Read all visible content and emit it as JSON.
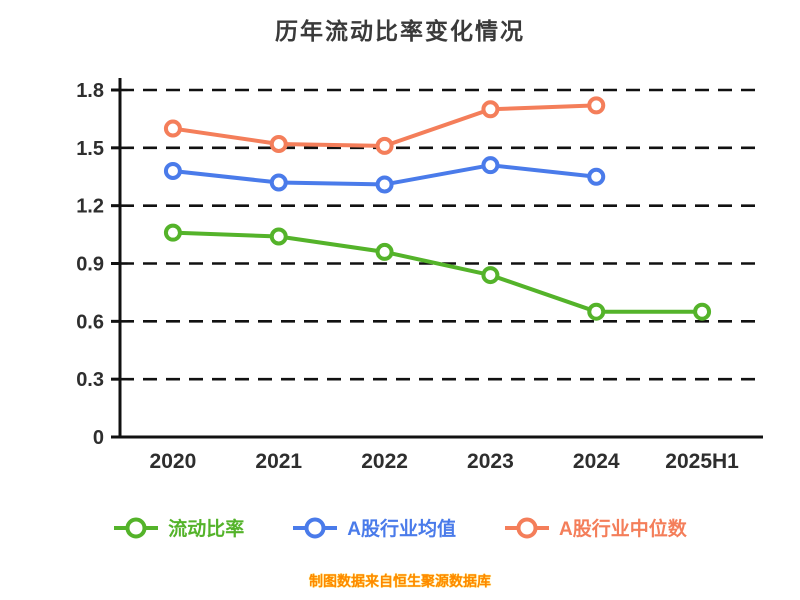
{
  "chart_data": {
    "type": "line",
    "title": "历年流动比率变化情况",
    "categories": [
      "2020",
      "2021",
      "2022",
      "2023",
      "2024",
      "2025H1"
    ],
    "series": [
      {
        "name": "流动比率",
        "color": "#54b32a",
        "values": [
          1.06,
          1.04,
          0.96,
          0.84,
          0.65,
          0.65
        ]
      },
      {
        "name": "A股行业均值",
        "color": "#4a7bea",
        "values": [
          1.38,
          1.32,
          1.31,
          1.41,
          1.35,
          null
        ]
      },
      {
        "name": "A股行业中位数",
        "color": "#f47e5a",
        "values": [
          1.6,
          1.52,
          1.51,
          1.7,
          1.72,
          null
        ]
      }
    ],
    "ylim": [
      0,
      1.8
    ],
    "yticks": [
      0,
      0.3,
      0.6,
      0.9,
      1.2,
      1.5,
      1.8
    ],
    "grid": true,
    "grid_style": "dashed",
    "legend_position": "bottom",
    "source_note": "制图数据来自恒生聚源数据库",
    "colors": {
      "title_text": "#3a3a3a",
      "axis": "#111111",
      "tick_text": "#2e2e2e",
      "source_text": "#ff8800",
      "marker_fill": "#ffffff"
    }
  }
}
